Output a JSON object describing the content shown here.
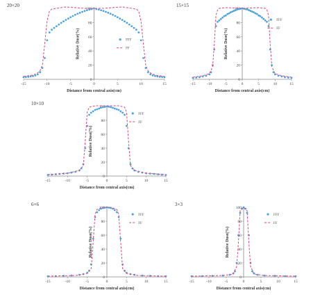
{
  "chart_data": [
    {
      "type": "scatter",
      "field_label": "20×20",
      "xlabel": "Distance from  central axis(cm)",
      "ylabel": "Relative Dose(%)",
      "xlim": [
        -15,
        15
      ],
      "ylim": [
        0,
        100
      ],
      "xticks": [
        -15,
        -10,
        -5,
        0,
        5,
        10,
        15
      ],
      "yticks": [
        0,
        20,
        40,
        60,
        80,
        100
      ],
      "legend": "top-right",
      "series": [
        {
          "name": "FFF",
          "style": "markers",
          "color": "#4aa3e0",
          "x": [
            -15,
            -14.5,
            -14,
            -13.5,
            -13,
            -12.5,
            -12,
            -11.5,
            -11,
            -10.5,
            -10,
            -9.5,
            -9,
            -8.5,
            -8,
            -7.5,
            -7,
            -6.5,
            -6,
            -5.5,
            -5,
            -4.5,
            -4,
            -3.5,
            -3,
            -2.5,
            -2,
            -1.5,
            -1,
            -0.5,
            0,
            0.5,
            1,
            1.5,
            2,
            2.5,
            3,
            3.5,
            4,
            4.5,
            5,
            5.5,
            6,
            6.5,
            7,
            7.5,
            8,
            8.5,
            9,
            9.5,
            10,
            10.5,
            11,
            11.5,
            12,
            12.5,
            13,
            13.5,
            14,
            14.5,
            15
          ],
          "y": [
            3,
            3.3,
            3.6,
            4,
            4.6,
            5.5,
            7,
            10,
            16,
            30,
            55,
            66,
            69.9,
            72.4,
            74.9,
            77.2,
            79.5,
            81.6,
            83.7,
            85.6,
            87.5,
            89.2,
            90.9,
            92.4,
            93.8,
            95.1,
            96.3,
            97.3,
            98.3,
            99,
            100,
            99,
            98.3,
            97.3,
            96.3,
            95.1,
            93.8,
            92.4,
            90.9,
            89.2,
            87.5,
            85.6,
            83.7,
            81.6,
            79.5,
            77.2,
            74.9,
            72.4,
            69.9,
            66,
            55,
            30,
            16,
            10,
            7,
            5.5,
            4.6,
            4,
            3.6,
            3.3,
            3
          ]
        },
        {
          "name": "FF",
          "style": "dashed",
          "color": "#e0457a",
          "x": [
            -15,
            -14,
            -13,
            -12,
            -11.5,
            -11,
            -10.5,
            -10,
            -9.5,
            -9,
            -8,
            -7,
            -6,
            -4,
            -2,
            0,
            2,
            4,
            6,
            7,
            8,
            9,
            9.5,
            10,
            10.5,
            11,
            11.5,
            12,
            13,
            14,
            15
          ],
          "y": [
            4,
            5,
            6,
            9,
            12,
            20,
            50,
            82,
            96,
            99,
            100,
            101,
            102,
            101,
            100,
            100,
            100,
            101,
            102,
            101,
            100,
            99,
            96,
            82,
            50,
            20,
            12,
            9,
            6,
            5,
            4
          ]
        }
      ]
    },
    {
      "type": "scatter",
      "field_label": "15×15",
      "xlabel": "Distance from  central axis(cm)",
      "ylabel": "Relative Dose(%)",
      "xlim": [
        -15,
        15
      ],
      "ylim": [
        0,
        100
      ],
      "xticks": [
        -15,
        -10,
        -5,
        0,
        5,
        10,
        15
      ],
      "yticks": [
        0,
        20,
        40,
        60,
        80,
        100
      ],
      "legend": "top-right",
      "series": [
        {
          "name": "FFF",
          "style": "markers",
          "color": "#4aa3e0",
          "x": [
            -15,
            -14,
            -13,
            -12,
            -11,
            -10,
            -9.5,
            -9,
            -8.5,
            -8,
            -7.5,
            -7,
            -6.5,
            -6,
            -5.5,
            -5,
            -4.5,
            -4,
            -3.5,
            -3,
            -2.5,
            -2,
            -1.5,
            -1,
            -0.5,
            0,
            0.5,
            1,
            1.5,
            2,
            2.5,
            3,
            3.5,
            4,
            4.5,
            5,
            5.5,
            6,
            6.5,
            7,
            7.5,
            8,
            8.5,
            9,
            9.5,
            10,
            11,
            12,
            13,
            14,
            15
          ],
          "y": [
            2,
            2.5,
            3,
            4,
            5,
            7,
            10,
            20,
            42,
            75,
            81,
            83,
            85,
            87,
            89,
            90,
            92,
            93,
            94.5,
            95.5,
            96.5,
            97.5,
            98.5,
            99,
            99.5,
            100,
            99.5,
            99,
            98.5,
            97.5,
            96.5,
            95.5,
            94.5,
            93,
            92,
            90,
            89,
            87,
            85,
            83,
            81,
            75,
            42,
            20,
            10,
            7,
            5,
            4,
            3,
            2.5,
            2
          ]
        },
        {
          "name": "FF",
          "style": "dashed",
          "color": "#e0457a",
          "x": [
            -15,
            -12,
            -10,
            -9,
            -8.5,
            -8,
            -7.5,
            -7,
            -5,
            0,
            5,
            7,
            7.5,
            8,
            8.5,
            9,
            10,
            12,
            15
          ],
          "y": [
            3,
            5,
            8,
            18,
            50,
            90,
            98,
            100,
            101,
            100,
            101,
            100,
            98,
            90,
            50,
            18,
            8,
            5,
            3
          ]
        }
      ]
    },
    {
      "type": "scatter",
      "field_label": "10×10",
      "xlabel": "Distance from  central axis(cm)",
      "ylabel": "Relative Dose(%)",
      "xlim": [
        -15,
        15
      ],
      "ylim": [
        0,
        100
      ],
      "xticks": [
        -15,
        -10,
        -5,
        0,
        5,
        10,
        15
      ],
      "yticks": [
        0,
        20,
        40,
        60,
        80,
        100
      ],
      "legend": "top-right",
      "series": [
        {
          "name": "FFF",
          "style": "markers",
          "color": "#4aa3e0",
          "x": [
            -15,
            -14,
            -13,
            -12,
            -11,
            -10,
            -9,
            -8,
            -7,
            -6.5,
            -6,
            -5.5,
            -5,
            -4.5,
            -4,
            -3.5,
            -3,
            -2.5,
            -2,
            -1.5,
            -1,
            -0.5,
            0,
            0.5,
            1,
            1.5,
            2,
            2.5,
            3,
            3.5,
            4,
            4.5,
            5,
            5.5,
            6,
            6.5,
            7,
            8,
            9,
            10,
            11,
            12,
            13,
            14,
            15
          ],
          "y": [
            1.5,
            2,
            2.5,
            3,
            3.5,
            4,
            5,
            6,
            8,
            11,
            17,
            40,
            72,
            88,
            91,
            93,
            95,
            96,
            97,
            98,
            99,
            99.5,
            100,
            99.5,
            99,
            98,
            97,
            96,
            95,
            93,
            91,
            88,
            72,
            40,
            17,
            11,
            8,
            6,
            5,
            4,
            3.5,
            3,
            2.5,
            2,
            1.5
          ]
        },
        {
          "name": "FF",
          "style": "dashed",
          "color": "#e0457a",
          "x": [
            -15,
            -10,
            -7,
            -6,
            -5.5,
            -5,
            -4.5,
            -3,
            0,
            3,
            4.5,
            5,
            5.5,
            6,
            7,
            10,
            15
          ],
          "y": [
            2,
            4,
            8,
            15,
            50,
            92,
            99,
            101,
            101,
            101,
            99,
            92,
            50,
            15,
            8,
            4,
            2
          ]
        }
      ]
    },
    {
      "type": "scatter",
      "field_label": "6×6",
      "xlabel": "Distance from  central axis(cm)",
      "ylabel": "Relative Dose(%)",
      "xlim": [
        -15,
        15
      ],
      "ylim": [
        0,
        100
      ],
      "xticks": [
        -15,
        -10,
        -5,
        0,
        5,
        10,
        15
      ],
      "yticks": [
        0,
        20,
        40,
        60,
        80,
        100
      ],
      "legend": "top-right",
      "series": [
        {
          "name": "FFF",
          "style": "markers",
          "color": "#4aa3e0",
          "x": [
            -15,
            -13,
            -11,
            -9,
            -7,
            -6,
            -5,
            -4.5,
            -4,
            -3.5,
            -3,
            -2.5,
            -2,
            -1.5,
            -1,
            -0.5,
            0,
            0.5,
            1,
            1.5,
            2,
            2.5,
            3,
            3.5,
            4,
            4.5,
            5,
            6,
            7,
            9,
            11,
            13,
            15
          ],
          "y": [
            1,
            1,
            1.5,
            2,
            3,
            4,
            6,
            9,
            18,
            55,
            86,
            93,
            96,
            98,
            99,
            99.5,
            100,
            99.5,
            99,
            98,
            96,
            93,
            86,
            55,
            18,
            9,
            6,
            4,
            3,
            2,
            1.5,
            1,
            1
          ]
        },
        {
          "name": "FF",
          "style": "dashed",
          "color": "#e0457a",
          "x": [
            -15,
            -8,
            -5,
            -4,
            -3.5,
            -3,
            -2.5,
            -1,
            0,
            1,
            2.5,
            3,
            3.5,
            4,
            5,
            8,
            15
          ],
          "y": [
            1,
            2,
            5,
            12,
            50,
            90,
            97,
            100,
            100,
            100,
            97,
            90,
            50,
            12,
            5,
            2,
            1
          ]
        }
      ]
    },
    {
      "type": "scatter",
      "field_label": "3×3",
      "xlabel": "Distance from  central axis(cm)",
      "ylabel": "Relative Dose(%)",
      "xlim": [
        -15,
        15
      ],
      "ylim": [
        0,
        100
      ],
      "xticks": [
        -15,
        -10,
        -5,
        0,
        5,
        10,
        15
      ],
      "yticks": [
        0,
        20,
        40,
        60,
        80,
        100
      ],
      "legend": "top-right",
      "series": [
        {
          "name": "FFF",
          "style": "markers",
          "color": "#4aa3e0",
          "x": [
            -15,
            -12,
            -9,
            -6,
            -4,
            -3,
            -2.5,
            -2,
            -1.5,
            -1,
            -0.5,
            0,
            0.5,
            1,
            1.5,
            2,
            2.5,
            3,
            4,
            6,
            9,
            12,
            15
          ],
          "y": [
            1,
            1,
            1.5,
            2,
            3,
            5,
            8,
            20,
            60,
            92,
            98,
            100,
            98,
            92,
            60,
            20,
            8,
            5,
            3,
            2,
            1.5,
            1,
            1
          ]
        },
        {
          "name": "FF",
          "style": "dashed",
          "color": "#e0457a",
          "x": [
            -15,
            -6,
            -3,
            -2,
            -1.5,
            -1,
            0,
            1,
            1.5,
            2,
            3,
            6,
            15
          ],
          "y": [
            1,
            2,
            4,
            15,
            50,
            95,
            100,
            95,
            50,
            15,
            4,
            2,
            1
          ]
        }
      ]
    }
  ]
}
